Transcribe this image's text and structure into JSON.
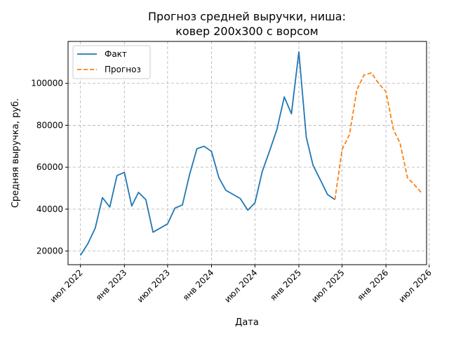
{
  "chart_data": {
    "type": "line",
    "title": [
      "Прогноз средней выручки, ниша:",
      "ковер 200x300 с ворсом"
    ],
    "xlabel": "Дата",
    "ylabel": "Средняя выручка, руб.",
    "grid": true,
    "legend_position": "top-left",
    "ylim": [
      13500,
      120000
    ],
    "xlim": [
      "2022-05-10",
      "2026-06-20"
    ],
    "yticks": [
      20000,
      40000,
      60000,
      80000,
      100000
    ],
    "xticks": [
      {
        "date": "2022-07-01",
        "label": "июл 2022"
      },
      {
        "date": "2023-01-01",
        "label": "янв 2023"
      },
      {
        "date": "2023-07-01",
        "label": "июл 2023"
      },
      {
        "date": "2024-01-01",
        "label": "янв 2024"
      },
      {
        "date": "2024-07-01",
        "label": "июл 2024"
      },
      {
        "date": "2025-01-01",
        "label": "янв 2025"
      },
      {
        "date": "2025-07-01",
        "label": "июл 2025"
      },
      {
        "date": "2026-01-01",
        "label": "янв 2026"
      },
      {
        "date": "2026-07-01",
        "label": "июл 2026"
      }
    ],
    "series": [
      {
        "name": "Факт",
        "color": "#1f77b4",
        "dash": "solid",
        "x": [
          "2022-07-01",
          "2022-08-01",
          "2022-09-01",
          "2022-10-01",
          "2022-11-01",
          "2022-12-01",
          "2023-01-01",
          "2023-02-01",
          "2023-03-01",
          "2023-04-01",
          "2023-05-01",
          "2023-06-01",
          "2023-07-01",
          "2023-08-01",
          "2023-09-01",
          "2023-10-01",
          "2023-11-01",
          "2023-12-01",
          "2024-01-01",
          "2024-02-01",
          "2024-03-01",
          "2024-04-01",
          "2024-05-01",
          "2024-06-01",
          "2024-07-01",
          "2024-08-01",
          "2024-09-01",
          "2024-10-01",
          "2024-11-01",
          "2024-12-01",
          "2025-01-01",
          "2025-02-01",
          "2025-03-01",
          "2025-04-01",
          "2025-05-01",
          "2025-06-01"
        ],
        "y": [
          18000,
          23500,
          31000,
          45500,
          41000,
          56000,
          57500,
          41500,
          48000,
          44500,
          29000,
          31000,
          33000,
          40500,
          42000,
          56500,
          68800,
          70000,
          67500,
          55000,
          49000,
          47000,
          45000,
          39500,
          43000,
          58000,
          68000,
          78000,
          93500,
          85500,
          115000,
          74500,
          61000,
          54000,
          47000,
          44500
        ]
      },
      {
        "name": "Прогноз",
        "color": "#ff7f0e",
        "dash": "dashed",
        "x": [
          "2025-06-01",
          "2025-07-01",
          "2025-08-01",
          "2025-09-01",
          "2025-10-01",
          "2025-11-01",
          "2025-12-01",
          "2026-01-01",
          "2026-02-01",
          "2026-03-01",
          "2026-04-01",
          "2026-05-01",
          "2026-06-01"
        ],
        "y": [
          44500,
          68500,
          75500,
          97000,
          104000,
          105000,
          100000,
          96000,
          78000,
          71500,
          55000,
          51500,
          47500
        ]
      }
    ]
  }
}
